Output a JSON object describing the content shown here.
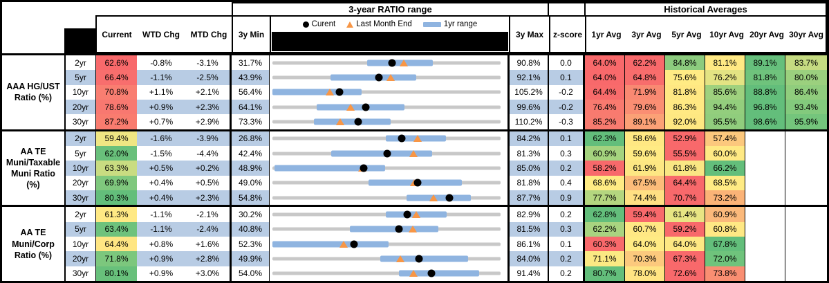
{
  "colors": {
    "row_shade": "#B8CCE4",
    "bar_blue": "#8FB4E0",
    "track_gray": "#C8C8C8",
    "triangle_orange": "#F79646",
    "dot_black": "#000000",
    "heat_red": "#F8696B",
    "heat_yellow": "#FFEB84",
    "heat_green": "#63BE7B"
  },
  "header": {
    "range_title": "3-year RATIO range",
    "hist_title": "Historical Averages",
    "col_current": "Current",
    "col_wtd": "WTD Chg",
    "col_mtd": "MTD Chg",
    "col_min": "3y Min",
    "col_max": "3y Max",
    "col_z": "z-score",
    "avg_cols": [
      "1yr Avg",
      "3yr Avg",
      "5yr Avg",
      "10yr Avg",
      "20yr Avg",
      "30yr Avg"
    ],
    "legend": {
      "current": "Curent",
      "last_month_end": "Last Month End",
      "range": "1yr range"
    }
  },
  "groups": [
    {
      "label_lines": [
        "AAA HG/UST",
        "Ratio (%)"
      ],
      "rows": [
        {
          "tenor": "2yr",
          "cur": "62.6%",
          "curBg": "#F8696B",
          "wtd": "-0.8%",
          "mtd": "-3.1%",
          "min": "31.7%",
          "max": "90.8%",
          "z": "0.0",
          "shade": false,
          "avgs": [
            [
              "64.0%",
              "#F8696B"
            ],
            [
              "62.2%",
              "#F8696B"
            ],
            [
              "84.8%",
              "#8CCB7E"
            ],
            [
              "81.1%",
              "#FFE984"
            ],
            [
              "89.1%",
              "#66BF7C"
            ],
            [
              "83.7%",
              "#C5DB81"
            ]
          ]
        },
        {
          "tenor": "5yr",
          "cur": "66.4%",
          "curBg": "#F86E6D",
          "wtd": "-1.1%",
          "mtd": "-2.5%",
          "min": "43.9%",
          "max": "92.1%",
          "z": "0.1",
          "shade": true,
          "avgs": [
            [
              "64.0%",
              "#F8696B"
            ],
            [
              "64.8%",
              "#F86D6C"
            ],
            [
              "75.6%",
              "#FFEB84"
            ],
            [
              "76.2%",
              "#E3E383"
            ],
            [
              "81.8%",
              "#6FC37C"
            ],
            [
              "80.0%",
              "#9BD07E"
            ]
          ]
        },
        {
          "tenor": "10yr",
          "cur": "70.8%",
          "curBg": "#F97E71",
          "wtd": "+1.1%",
          "mtd": "+2.1%",
          "min": "56.4%",
          "max": "105.2%",
          "z": "-0.2",
          "shade": false,
          "avgs": [
            [
              "64.4%",
              "#F86B6B"
            ],
            [
              "71.9%",
              "#F98972"
            ],
            [
              "81.8%",
              "#FFE883"
            ],
            [
              "85.6%",
              "#9FD17E"
            ],
            [
              "88.8%",
              "#63BE7B"
            ],
            [
              "86.4%",
              "#90CD7D"
            ]
          ]
        },
        {
          "tenor": "20yr",
          "cur": "78.6%",
          "curBg": "#F87870",
          "wtd": "+0.9%",
          "mtd": "+2.3%",
          "min": "64.1%",
          "max": "99.6%",
          "z": "-0.2",
          "shade": true,
          "avgs": [
            [
              "76.4%",
              "#F97A6F"
            ],
            [
              "79.6%",
              "#FA8E73"
            ],
            [
              "86.3%",
              "#FFE983"
            ],
            [
              "94.4%",
              "#93CE7D"
            ],
            [
              "96.8%",
              "#63BE7B"
            ],
            [
              "93.4%",
              "#83CA7D"
            ]
          ]
        },
        {
          "tenor": "30yr",
          "cur": "87.2%",
          "curBg": "#F97C6F",
          "wtd": "+0.7%",
          "mtd": "+2.9%",
          "min": "73.3%",
          "max": "110.2%",
          "z": "-0.3",
          "shade": false,
          "avgs": [
            [
              "85.2%",
              "#F87B6F"
            ],
            [
              "89.1%",
              "#FBA176"
            ],
            [
              "92.0%",
              "#FEE882"
            ],
            [
              "95.5%",
              "#90CD7D"
            ],
            [
              "98.6%",
              "#63BE7B"
            ],
            [
              "95.9%",
              "#74C57C"
            ]
          ]
        }
      ]
    },
    {
      "label_lines": [
        "AA TE",
        "Muni/Taxable",
        "Muni Ratio",
        "(%)"
      ],
      "rows": [
        {
          "tenor": "2yr",
          "cur": "59.4%",
          "curBg": "#EFE683",
          "wtd": "-1.6%",
          "mtd": "-3.9%",
          "min": "26.8%",
          "max": "84.2%",
          "z": "0.1",
          "shade": true,
          "avgs": [
            [
              "62.3%",
              "#63BE7B"
            ],
            [
              "58.6%",
              "#FFE883"
            ],
            [
              "52.9%",
              "#F8696B"
            ],
            [
              "57.4%",
              "#FCC87D"
            ],
            [
              "",
              ""
            ],
            [
              "",
              ""
            ]
          ]
        },
        {
          "tenor": "5yr",
          "cur": "62.0%",
          "curBg": "#69C07B",
          "wtd": "-1.5%",
          "mtd": "-4.4%",
          "min": "42.4%",
          "max": "81.3%",
          "z": "0.3",
          "shade": false,
          "avgs": [
            [
              "60.9%",
              "#A5D37F"
            ],
            [
              "59.6%",
              "#FFEB84"
            ],
            [
              "55.5%",
              "#F8696B"
            ],
            [
              "60.0%",
              "#FFE984"
            ],
            [
              "",
              ""
            ],
            [
              "",
              ""
            ]
          ]
        },
        {
          "tenor": "10yr",
          "cur": "63.3%",
          "curBg": "#C9DC81",
          "wtd": "+0.5%",
          "mtd": "+0.2%",
          "min": "48.9%",
          "max": "85.0%",
          "z": "0.2",
          "shade": true,
          "avgs": [
            [
              "58.2%",
              "#F8696B"
            ],
            [
              "61.9%",
              "#FDE783"
            ],
            [
              "61.8%",
              "#F9E683"
            ],
            [
              "66.2%",
              "#63BE7B"
            ],
            [
              "",
              ""
            ],
            [
              "",
              ""
            ]
          ]
        },
        {
          "tenor": "20yr",
          "cur": "69.9%",
          "curBg": "#7FC87D",
          "wtd": "+0.4%",
          "mtd": "+0.5%",
          "min": "49.0%",
          "max": "81.8%",
          "z": "0.4",
          "shade": false,
          "avgs": [
            [
              "68.6%",
              "#FFEB84"
            ],
            [
              "67.5%",
              "#FCBC7A"
            ],
            [
              "64.4%",
              "#F8696B"
            ],
            [
              "68.5%",
              "#FFEB84"
            ],
            [
              "",
              ""
            ],
            [
              "",
              ""
            ]
          ]
        },
        {
          "tenor": "30yr",
          "cur": "80.3%",
          "curBg": "#63BE7B",
          "wtd": "+0.4%",
          "mtd": "+2.3%",
          "min": "54.8%",
          "max": "87.7%",
          "z": "0.9",
          "shade": true,
          "avgs": [
            [
              "77.7%",
              "#B4D67F"
            ],
            [
              "74.4%",
              "#FFE083"
            ],
            [
              "70.7%",
              "#F8696B"
            ],
            [
              "73.2%",
              "#FBB377"
            ],
            [
              "",
              ""
            ],
            [
              "",
              ""
            ]
          ]
        }
      ]
    },
    {
      "label_lines": [
        "AA TE",
        "Muni/Corp",
        "Ratio (%)"
      ],
      "rows": [
        {
          "tenor": "2yr",
          "cur": "61.3%",
          "curBg": "#FFE984",
          "wtd": "-1.1%",
          "mtd": "-2.1%",
          "min": "30.2%",
          "max": "82.9%",
          "z": "0.2",
          "shade": false,
          "avgs": [
            [
              "62.8%",
              "#63BE7B"
            ],
            [
              "59.4%",
              "#F8696B"
            ],
            [
              "61.4%",
              "#E8E583"
            ],
            [
              "60.9%",
              "#FBB97B"
            ],
            [
              "",
              ""
            ],
            [
              "",
              ""
            ]
          ]
        },
        {
          "tenor": "5yr",
          "cur": "63.4%",
          "curBg": "#6EC27C",
          "wtd": "-1.1%",
          "mtd": "-2.4%",
          "min": "40.8%",
          "max": "81.5%",
          "z": "0.3",
          "shade": true,
          "avgs": [
            [
              "62.2%",
              "#A9D480"
            ],
            [
              "60.7%",
              "#FFE884"
            ],
            [
              "59.2%",
              "#F8696B"
            ],
            [
              "60.8%",
              "#FFE884"
            ],
            [
              "",
              ""
            ],
            [
              "",
              ""
            ]
          ]
        },
        {
          "tenor": "10yr",
          "cur": "64.4%",
          "curBg": "#FFE683",
          "wtd": "+0.8%",
          "mtd": "+1.6%",
          "min": "52.3%",
          "max": "86.1%",
          "z": "0.1",
          "shade": false,
          "avgs": [
            [
              "60.3%",
              "#F8696B"
            ],
            [
              "64.0%",
              "#FFEB84"
            ],
            [
              "64.0%",
              "#FEE883"
            ],
            [
              "67.8%",
              "#63BE7B"
            ],
            [
              "",
              ""
            ],
            [
              "",
              ""
            ]
          ]
        },
        {
          "tenor": "20yr",
          "cur": "71.8%",
          "curBg": "#7CC77D",
          "wtd": "+0.9%",
          "mtd": "+2.8%",
          "min": "49.9%",
          "max": "84.0%",
          "z": "0.2",
          "shade": true,
          "avgs": [
            [
              "71.1%",
              "#FBE983"
            ],
            [
              "70.3%",
              "#FCC97D"
            ],
            [
              "67.3%",
              "#F8696B"
            ],
            [
              "72.0%",
              "#6FC37C"
            ],
            [
              "",
              ""
            ],
            [
              "",
              ""
            ]
          ]
        },
        {
          "tenor": "30yr",
          "cur": "80.1%",
          "curBg": "#68C07B",
          "wtd": "+0.9%",
          "mtd": "+3.0%",
          "min": "54.0%",
          "max": "91.4%",
          "z": "0.2",
          "shade": false,
          "avgs": [
            [
              "80.7%",
              "#63BE7B"
            ],
            [
              "78.0%",
              "#FFE483"
            ],
            [
              "72.6%",
              "#F8696B"
            ],
            [
              "73.8%",
              "#F98E72"
            ],
            [
              "",
              ""
            ],
            [
              "",
              ""
            ]
          ]
        }
      ]
    }
  ],
  "chart_data": {
    "type": "scatter",
    "title": "3-year RATIO range",
    "description": "Per tenor: gray track = 3y min-max ratio range, blue bar = 1yr range, black dot = current, orange triangle = last month end. Values in percent.",
    "legend": [
      "Curent",
      "Last Month End",
      "1yr range"
    ],
    "series_order": [
      "3y_min",
      "1y_low",
      "last_month_end",
      "current",
      "1y_high",
      "3y_max"
    ],
    "groups": [
      {
        "name": "AAA HG/UST Ratio (%)",
        "tenors": [
          "2yr",
          "5yr",
          "10yr",
          "20yr",
          "30yr"
        ],
        "rows": [
          [
            31.7,
            56.3,
            65.7,
            62.6,
            73.3,
            90.8
          ],
          [
            43.9,
            56.1,
            68.9,
            66.4,
            74.3,
            92.1
          ],
          [
            56.4,
            56.4,
            68.7,
            70.8,
            75.5,
            105.2
          ],
          [
            64.1,
            71.0,
            76.3,
            78.6,
            84.7,
            99.6
          ],
          [
            73.3,
            80.0,
            84.3,
            87.2,
            92.4,
            110.2
          ]
        ]
      },
      {
        "name": "AA TE Muni/Taxable Muni Ratio (%)",
        "tenors": [
          "2yr",
          "5yr",
          "10yr",
          "20yr",
          "30yr"
        ],
        "rows": [
          [
            26.8,
            55.4,
            63.3,
            59.4,
            70.4,
            84.2
          ],
          [
            42.4,
            52.4,
            66.4,
            62.0,
            69.6,
            81.3
          ],
          [
            48.9,
            49.2,
            63.1,
            63.3,
            66.7,
            85.0
          ],
          [
            49.0,
            62.8,
            69.4,
            69.9,
            76.2,
            81.8
          ],
          [
            54.8,
            74.1,
            78.0,
            80.3,
            83.4,
            87.7
          ]
        ]
      },
      {
        "name": "AA TE Muni/Corp Ratio (%)",
        "tenors": [
          "2yr",
          "5yr",
          "10yr",
          "20yr",
          "30yr"
        ],
        "rows": [
          [
            30.2,
            56.4,
            63.4,
            61.3,
            70.5,
            82.9
          ],
          [
            40.8,
            54.6,
            65.8,
            63.4,
            70.4,
            81.5
          ],
          [
            52.3,
            52.3,
            62.8,
            64.4,
            69.5,
            86.1
          ],
          [
            49.9,
            66.0,
            69.0,
            71.8,
            79.1,
            84.0
          ],
          [
            54.0,
            74.7,
            77.1,
            80.1,
            87.9,
            91.4
          ]
        ]
      }
    ]
  }
}
